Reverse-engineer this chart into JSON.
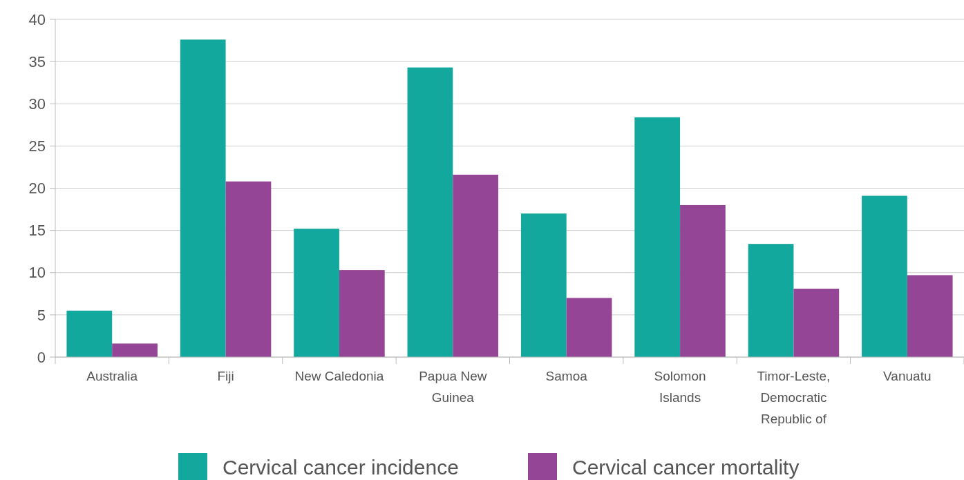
{
  "chart_data": {
    "type": "bar",
    "categories": [
      "Australia",
      "Fiji",
      "New Caledonia",
      "Papua New Guinea",
      "Samoa",
      "Solomon Islands",
      "Timor-Leste, Democratic Republic of",
      "Vanuatu"
    ],
    "series": [
      {
        "name": "Cervical cancer incidence",
        "color": "#12a89d",
        "values": [
          5.5,
          37.6,
          15.2,
          34.3,
          17.0,
          28.4,
          13.4,
          19.1
        ]
      },
      {
        "name": "Cervical cancer mortality",
        "color": "#954596",
        "values": [
          1.6,
          20.8,
          10.3,
          21.6,
          7.0,
          18.0,
          8.1,
          9.7
        ]
      }
    ],
    "ylim": [
      0,
      40
    ],
    "yticks": [
      0,
      5,
      10,
      15,
      20,
      25,
      30,
      35,
      40
    ],
    "grid": "y",
    "legend": "bottom"
  }
}
